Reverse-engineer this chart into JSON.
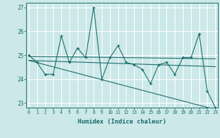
{
  "xlabel": "Humidex (Indice chaleur)",
  "background_color": "#cce8e8",
  "line_color": "#1a6b6b",
  "grid_color": "#ffffff",
  "x": [
    0,
    1,
    2,
    3,
    4,
    5,
    6,
    7,
    8,
    9,
    10,
    11,
    12,
    13,
    14,
    15,
    16,
    17,
    18,
    19,
    20,
    21,
    22,
    23
  ],
  "series1": [
    25.0,
    24.7,
    24.2,
    24.2,
    25.8,
    24.7,
    25.3,
    24.9,
    27.0,
    24.0,
    24.9,
    25.4,
    24.7,
    24.6,
    24.4,
    23.8,
    24.6,
    24.7,
    24.2,
    24.9,
    24.9,
    25.9,
    23.5,
    22.8
  ],
  "trend1_x": [
    0,
    23
  ],
  "trend1_y": [
    24.95,
    24.85
  ],
  "trend2_x": [
    0,
    23
  ],
  "trend2_y": [
    24.78,
    24.52
  ],
  "trend3_x": [
    0,
    23
  ],
  "trend3_y": [
    24.78,
    22.72
  ],
  "ylim": [
    22.8,
    27.2
  ],
  "yticks": [
    23,
    24,
    25,
    26,
    27
  ],
  "xticks": [
    0,
    1,
    2,
    3,
    4,
    5,
    6,
    7,
    8,
    9,
    10,
    11,
    12,
    13,
    14,
    15,
    16,
    17,
    18,
    19,
    20,
    21,
    22,
    23
  ],
  "xlim": [
    -0.3,
    23.3
  ]
}
